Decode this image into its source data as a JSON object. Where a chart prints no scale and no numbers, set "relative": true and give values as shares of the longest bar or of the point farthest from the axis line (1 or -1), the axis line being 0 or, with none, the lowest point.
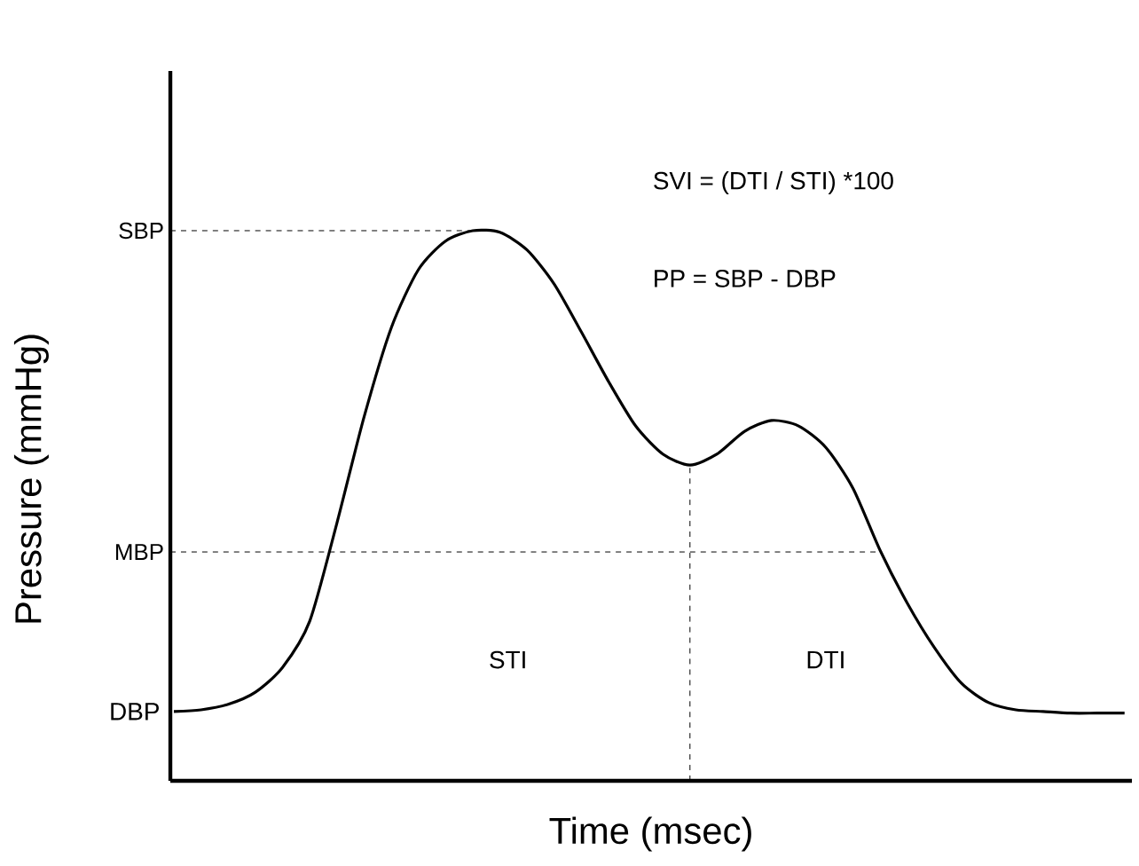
{
  "chart_data": {
    "type": "line",
    "relative": true,
    "xlabel": "Time (msec)",
    "ylabel": "Pressure (mmHg)",
    "categories": [
      null,
      null,
      null,
      null,
      null,
      null,
      null,
      null,
      null,
      null,
      null,
      null,
      null,
      null,
      null,
      null,
      null,
      null,
      null,
      null,
      null,
      null,
      null,
      null,
      null,
      null,
      null,
      null,
      null,
      null,
      null,
      null,
      null,
      null,
      null,
      null
    ],
    "series": [
      {
        "color": "#000000",
        "values": [
          0.126,
          0.129,
          0.139,
          0.161,
          0.206,
          0.29,
          0.468,
          0.661,
          0.823,
          0.929,
          0.981,
          1,
          0.997,
          0.965,
          0.903,
          0.816,
          0.726,
          0.645,
          0.594,
          0.574,
          0.594,
          0.635,
          0.655,
          0.645,
          0.606,
          0.532,
          0.419,
          0.323,
          0.242,
          0.177,
          0.142,
          0.129,
          0.126,
          0.123,
          0.123,
          0.123
        ]
      }
    ],
    "ref_lines": [
      {
        "axis": "y",
        "value": 1,
        "label": "SBP",
        "line_style": "dashed"
      },
      {
        "axis": "y",
        "value": 0.416,
        "label": "MBP",
        "line_style": "dashed"
      }
    ],
    "annotations": [
      "STI",
      "DTI",
      "SVI = (DTI / STI) *100",
      "PP = SBP - DBP",
      "DBP"
    ]
  }
}
